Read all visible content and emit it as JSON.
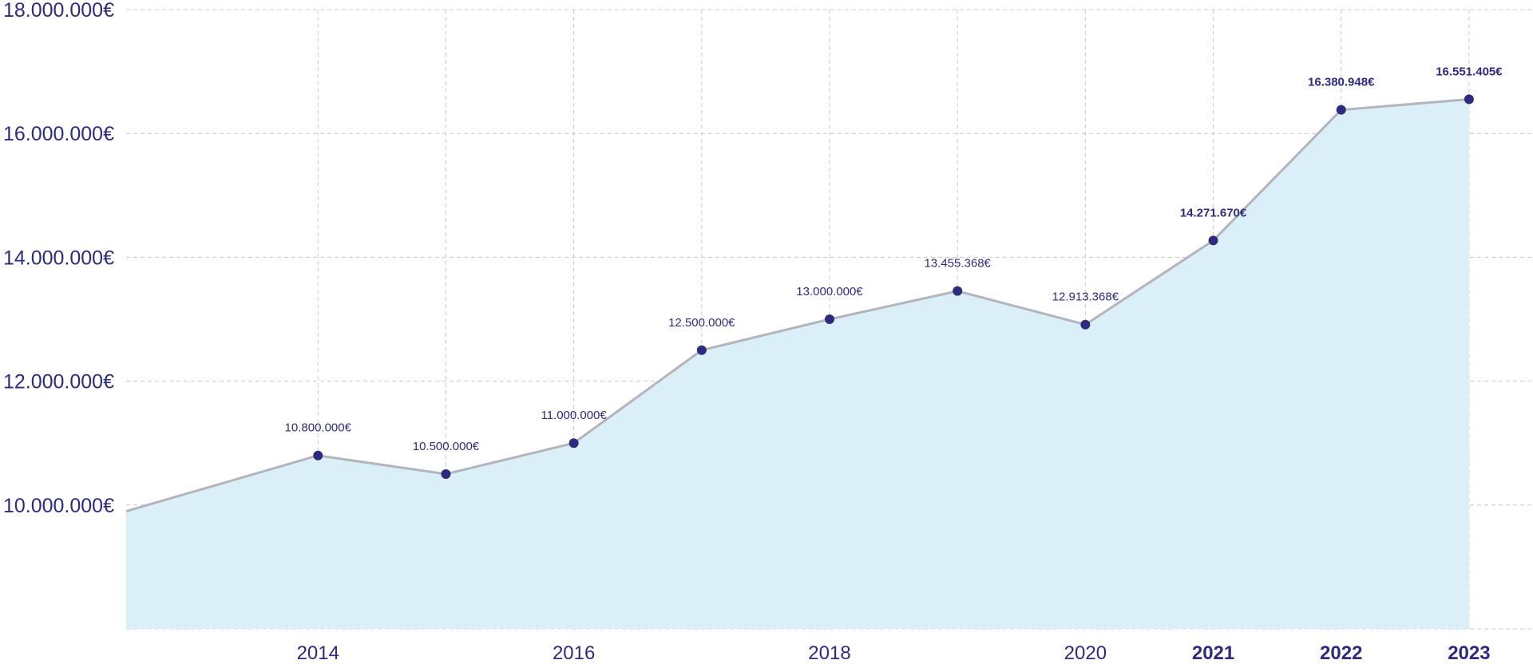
{
  "chart_data": {
    "type": "area",
    "x": [
      2012.5,
      2014,
      2015,
      2016,
      2017,
      2018,
      2019,
      2020,
      2021,
      2022,
      2023
    ],
    "values": [
      9900000,
      10800000,
      10500000,
      11000000,
      12500000,
      13000000,
      13455368,
      12913368,
      14271670,
      16380948,
      16551405
    ],
    "point_labels": [
      "",
      "10.800.000€",
      "10.500.000€",
      "11.000.000€",
      "12.500.000€",
      "13.000.000€",
      "13.455.368€",
      "12.913.368€",
      "14.271.670€",
      "16.380.948€",
      "16.551.405€"
    ],
    "bold_points": [
      false,
      false,
      false,
      false,
      false,
      false,
      false,
      false,
      true,
      true,
      true
    ],
    "x_ticks": [
      {
        "value": 2014,
        "label": "2014",
        "bold": false
      },
      {
        "value": 2016,
        "label": "2016",
        "bold": false
      },
      {
        "value": 2018,
        "label": "2018",
        "bold": false
      },
      {
        "value": 2020,
        "label": "2020",
        "bold": false
      },
      {
        "value": 2021,
        "label": "2021",
        "bold": true
      },
      {
        "value": 2022,
        "label": "2022",
        "bold": true
      },
      {
        "value": 2023,
        "label": "2023",
        "bold": true
      }
    ],
    "y_ticks": [
      {
        "value": 10000000,
        "label": "10.000.000€"
      },
      {
        "value": 12000000,
        "label": "12.000.000€"
      },
      {
        "value": 14000000,
        "label": "14.000.000€"
      },
      {
        "value": 16000000,
        "label": "16.000.000€"
      },
      {
        "value": 18000000,
        "label": "18.000.000€"
      }
    ],
    "xlim": [
      2012.5,
      2023.5
    ],
    "ylim": [
      8000000,
      18000000
    ],
    "title": "",
    "xlabel": "",
    "ylabel": "",
    "grid": true,
    "legend": "none",
    "colors": {
      "area_fill": "#daeff8",
      "line": "#b4b4bc",
      "point": "#2e2b7f",
      "text": "#2e2b7f",
      "grid": "#c8c8cc"
    }
  }
}
